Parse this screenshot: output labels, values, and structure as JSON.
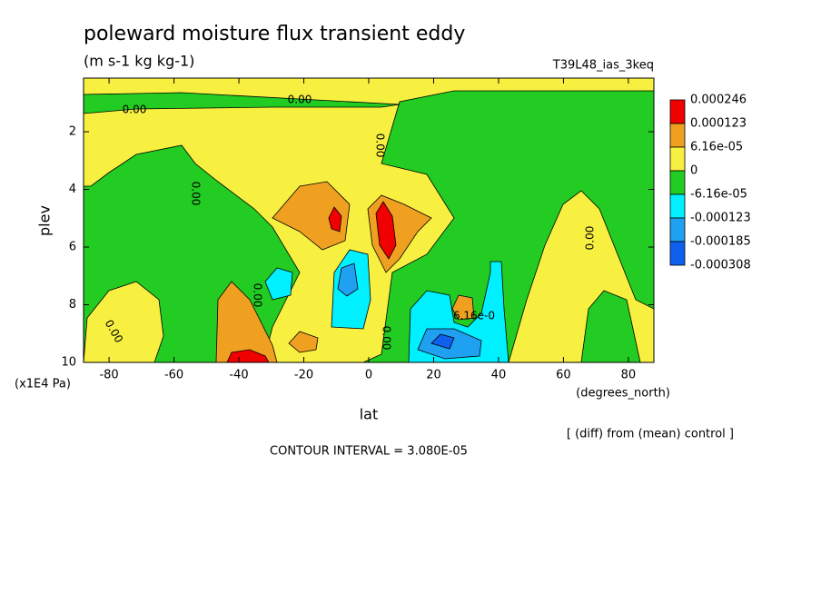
{
  "chart_data": {
    "type": "contour",
    "title": "poleward moisture flux transient eddy",
    "subtitle": "(m s-1 kg kg-1)",
    "run_label": "T39L48_ias_3keq",
    "x_label": "lat",
    "x_units": "(degrees_north)",
    "y_label": "plev",
    "y_units": "(x1E4 Pa)",
    "xlim": [
      -87.86,
      87.86
    ],
    "xticks": [
      -80,
      -60,
      -40,
      -20,
      0,
      20,
      40,
      60,
      80
    ],
    "ylim": [
      10,
      0.14
    ],
    "yticks": [
      2,
      4,
      6,
      8,
      10
    ],
    "colorbar": {
      "levels": [
        0.000246,
        0.000123,
        {
          "value": 6.16e-05,
          "label": "6.16e-05"
        },
        0,
        {
          "value": -6.16e-05,
          "label": "-6.16e-05"
        },
        -0.000123,
        -0.000185,
        -0.000308
      ],
      "colors": [
        "#f00000",
        "#f0a020",
        "#f8f040",
        "#22cc22",
        "#00f0ff",
        "#20a0f0",
        "#1060f0"
      ]
    },
    "contour_labels": [
      "0.00",
      "0.00",
      "0.00",
      "0.00",
      "0.00",
      "0.00",
      "0.00",
      "0.00",
      "6.16e-0"
    ],
    "note": "[ (diff) from (mean) control ]",
    "contour_interval": "CONTOUR INTERVAL = 3.080E-05"
  }
}
